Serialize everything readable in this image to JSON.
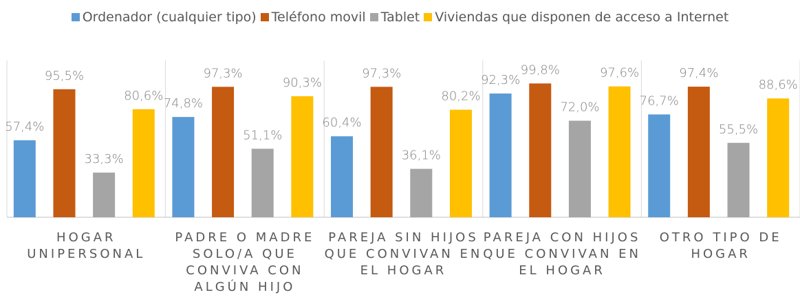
{
  "chart_data": {
    "type": "bar",
    "categories": [
      "HOGAR UNIPERSONAL",
      "PADRE O MADRE SOLO/A QUE CONVIVA CON ALGÚN HIJO",
      "PAREJA SIN HIJOS QUE CONVIVAN EN EL HOGAR",
      "PAREJA CON HIJOS QUE CONVIVAN EN EL HOGAR",
      "OTRO TIPO DE HOGAR"
    ],
    "series": [
      {
        "name": "Ordenador (cualquier tipo)",
        "color": "#5b9bd5",
        "values": [
          57.4,
          74.8,
          60.4,
          92.3,
          76.7
        ],
        "value_labels": [
          "57,4%",
          "74,8%",
          "60,4%",
          "92,3%",
          "76,7%"
        ]
      },
      {
        "name": "Teléfono movil",
        "color": "#c55a11",
        "values": [
          95.5,
          97.3,
          97.3,
          99.8,
          97.4
        ],
        "value_labels": [
          "95,5%",
          "97,3%",
          "97,3%",
          "99,8%",
          "97,4%"
        ]
      },
      {
        "name": "Tablet",
        "color": "#a5a5a5",
        "values": [
          33.3,
          51.1,
          36.1,
          72.0,
          55.5
        ],
        "value_labels": [
          "33,3%",
          "51,1%",
          "36,1%",
          "72,0%",
          "55,5%"
        ]
      },
      {
        "name": "Viviendas que disponen de acceso a Internet",
        "color": "#ffc000",
        "values": [
          80.6,
          90.3,
          80.2,
          97.6,
          88.6
        ],
        "value_labels": [
          "80,6%",
          "90,3%",
          "80,2%",
          "97,6%",
          "88,6%"
        ]
      }
    ],
    "ylim": [
      0,
      100
    ],
    "legend": "top"
  }
}
